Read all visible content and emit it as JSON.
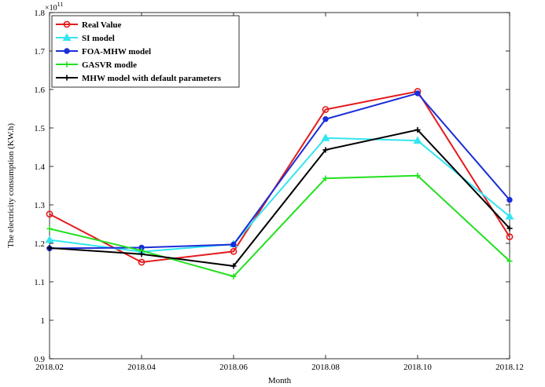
{
  "chart_data": {
    "type": "line",
    "title": "",
    "xlabel": "Month",
    "ylabel": "The electricity consumption (KW.h)",
    "exponent_label": "×10",
    "exponent_power": "11",
    "categories": [
      "2018.02",
      "2018.04",
      "2018.06",
      "2018.08",
      "2018.10",
      "2018.12"
    ],
    "ylim": [
      0.9,
      1.8
    ],
    "yticks": [
      0.9,
      1,
      1.1,
      1.2,
      1.3,
      1.4,
      1.5,
      1.6,
      1.7,
      1.8
    ],
    "ytick_labels": [
      "0.9",
      "1",
      "1.1",
      "1.2",
      "1.3",
      "1.4",
      "1.5",
      "1.6",
      "1.7",
      "1.8"
    ],
    "grid": false,
    "legend_position": "top-left",
    "series": [
      {
        "name": "Real Value",
        "color": "#e41a1c",
        "marker": "circle",
        "values": [
          1.276,
          1.151,
          1.179,
          1.548,
          1.595,
          1.217
        ]
      },
      {
        "name": "SI model",
        "color": "#33e6f0",
        "marker": "triangle",
        "values": [
          1.209,
          1.178,
          1.198,
          1.474,
          1.467,
          1.27
        ]
      },
      {
        "name": "FOA-MHW model",
        "color": "#1a2ed8",
        "marker": "dot",
        "values": [
          1.187,
          1.189,
          1.197,
          1.523,
          1.59,
          1.313
        ]
      },
      {
        "name": "GASVR modle",
        "color": "#22e01f",
        "marker": "plus",
        "values": [
          1.238,
          1.181,
          1.114,
          1.369,
          1.376,
          1.154
        ]
      },
      {
        "name": "MHW model with default parameters",
        "color": "#000000",
        "marker": "plus",
        "values": [
          1.188,
          1.172,
          1.141,
          1.443,
          1.495,
          1.239
        ]
      }
    ]
  }
}
